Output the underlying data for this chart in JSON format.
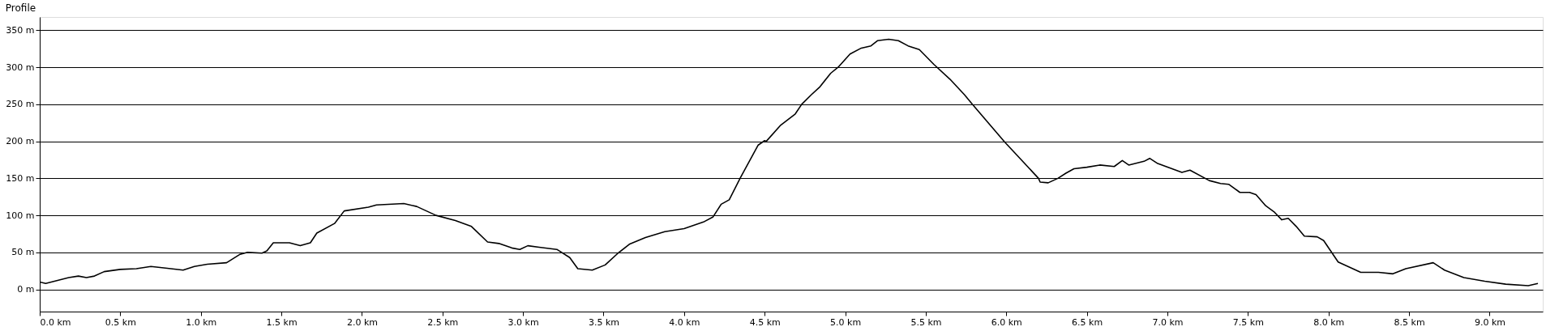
{
  "chart_data": {
    "type": "line",
    "title": "Profile",
    "x": [
      0,
      0.037,
      0.18,
      0.24,
      0.29,
      0.34,
      0.4,
      0.5,
      0.6,
      0.69,
      0.77,
      0.89,
      0.96,
      1.04,
      1.16,
      1.24,
      1.29,
      1.38,
      1.41,
      1.45,
      1.55,
      1.617,
      1.68,
      1.72,
      1.83,
      1.89,
      2.04,
      2.09,
      2.26,
      2.34,
      2.46,
      2.58,
      2.68,
      2.78,
      2.85,
      2.93,
      2.98,
      3.03,
      3.1,
      3.21,
      3.29,
      3.34,
      3.43,
      3.51,
      3.59,
      3.66,
      3.76,
      3.88,
      4.0,
      4.12,
      4.18,
      4.23,
      4.28,
      4.35,
      4.46,
      4.5,
      4.51,
      4.6,
      4.69,
      4.73,
      4.79,
      4.84,
      4.91,
      4.96,
      5.03,
      5.1,
      5.16,
      5.2,
      5.27,
      5.33,
      5.39,
      5.46,
      5.55,
      5.65,
      5.74,
      5.79,
      5.99,
      6.2,
      6.21,
      6.26,
      6.32,
      6.37,
      6.42,
      6.5,
      6.58,
      6.67,
      6.72,
      6.76,
      6.855,
      6.89,
      6.94,
      7.09,
      7.14,
      7.26,
      7.33,
      7.38,
      7.45,
      7.51,
      7.55,
      7.61,
      7.666,
      7.71,
      7.75,
      7.8,
      7.85,
      7.93,
      7.97,
      8.06,
      8.2,
      8.31,
      8.4,
      8.48,
      8.65,
      8.72,
      8.84,
      8.97,
      9.1,
      9.24,
      9.3
    ],
    "series": [
      {
        "color": "#000000",
        "values": [
          10,
          8,
          16,
          18,
          16,
          18,
          24,
          27,
          28,
          31,
          29,
          26,
          31,
          34,
          36,
          47,
          50,
          49,
          52,
          63,
          63,
          59,
          63,
          76,
          89,
          106,
          111,
          114,
          116,
          112,
          100,
          93,
          85,
          64,
          62,
          56,
          54,
          59,
          57,
          54,
          43,
          28,
          26,
          33,
          49,
          61,
          70,
          78,
          82,
          91,
          98,
          115,
          121,
          151,
          195,
          201,
          200,
          222,
          237,
          250,
          263,
          273,
          292,
          301,
          318,
          326,
          329,
          336,
          338,
          336,
          329,
          324,
          304,
          284,
          263,
          250,
          199,
          150,
          145,
          144,
          150,
          157,
          163,
          165,
          168,
          166,
          174,
          168,
          173,
          177,
          170,
          158,
          161,
          147,
          143,
          142,
          131,
          131,
          128,
          113,
          104,
          94,
          96,
          85,
          72,
          71,
          66,
          37,
          23,
          23,
          21,
          28,
          36,
          26,
          16,
          11,
          7,
          5,
          8
        ]
      }
    ],
    "xlim": [
      0,
      9.33
    ],
    "ylim": [
      -30,
      368
    ],
    "xticks": [
      {
        "value": 0,
        "label": "0.0 km"
      },
      {
        "value": 0.5,
        "label": "0.5 km"
      },
      {
        "value": 1,
        "label": "1.0 km"
      },
      {
        "value": 1.5,
        "label": "1.5 km"
      },
      {
        "value": 2,
        "label": "2.0 km"
      },
      {
        "value": 2.5,
        "label": "2.5 km"
      },
      {
        "value": 3,
        "label": "3.0 km"
      },
      {
        "value": 3.5,
        "label": "3.5 km"
      },
      {
        "value": 4,
        "label": "4.0 km"
      },
      {
        "value": 4.5,
        "label": "4.5 km"
      },
      {
        "value": 5,
        "label": "5.0 km"
      },
      {
        "value": 5.5,
        "label": "5.5 km"
      },
      {
        "value": 6,
        "label": "6.0 km"
      },
      {
        "value": 6.5,
        "label": "6.5 km"
      },
      {
        "value": 7,
        "label": "7.0 km"
      },
      {
        "value": 7.5,
        "label": "7.5 km"
      },
      {
        "value": 8,
        "label": "8.0 km"
      },
      {
        "value": 8.5,
        "label": "8.5 km"
      },
      {
        "value": 9,
        "label": "9.0 km"
      }
    ],
    "yticks": [
      {
        "value": 0,
        "label": "0 m"
      },
      {
        "value": 50,
        "label": "50 m"
      },
      {
        "value": 100,
        "label": "100 m"
      },
      {
        "value": 150,
        "label": "150 m"
      },
      {
        "value": 200,
        "label": "200 m"
      },
      {
        "value": 250,
        "label": "250 m"
      },
      {
        "value": 300,
        "label": "300 m"
      },
      {
        "value": 350,
        "label": "350 m"
      }
    ],
    "grid": "y",
    "marker": "none",
    "line_style": "solid"
  }
}
